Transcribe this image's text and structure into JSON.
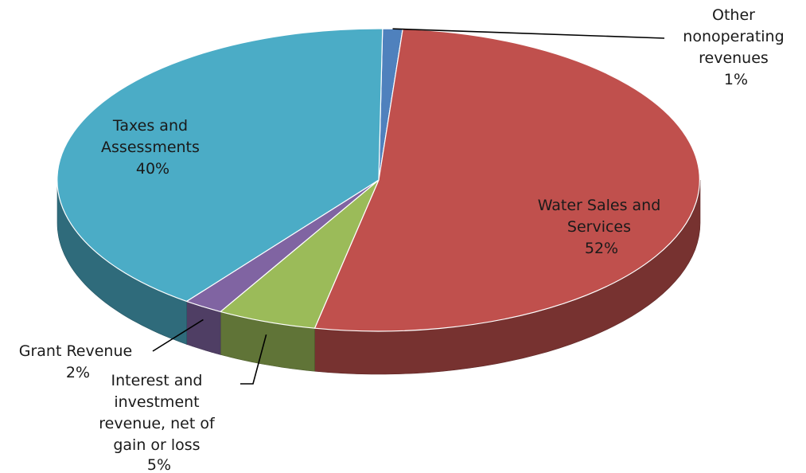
{
  "chart_data": {
    "type": "pie",
    "style": "3d",
    "title": "",
    "slices": [
      {
        "label": "Other nonoperating revenues",
        "percent_label": "1%",
        "value": 1,
        "color": "#4f81bd"
      },
      {
        "label": "Water Sales and Services",
        "percent_label": "52%",
        "value": 52,
        "color": "#c0504d"
      },
      {
        "label": "Interest and investment revenue, net of gain or loss",
        "percent_label": "5%",
        "value": 5,
        "color": "#9bbb59"
      },
      {
        "label": "Grant Revenue",
        "percent_label": "2%",
        "value": 2,
        "color": "#8064a2"
      },
      {
        "label": "Taxes and Assessments",
        "percent_label": "40%",
        "value": 40,
        "color": "#4bacc6"
      }
    ],
    "legend": "none",
    "data_labels": "category name and percentage"
  }
}
